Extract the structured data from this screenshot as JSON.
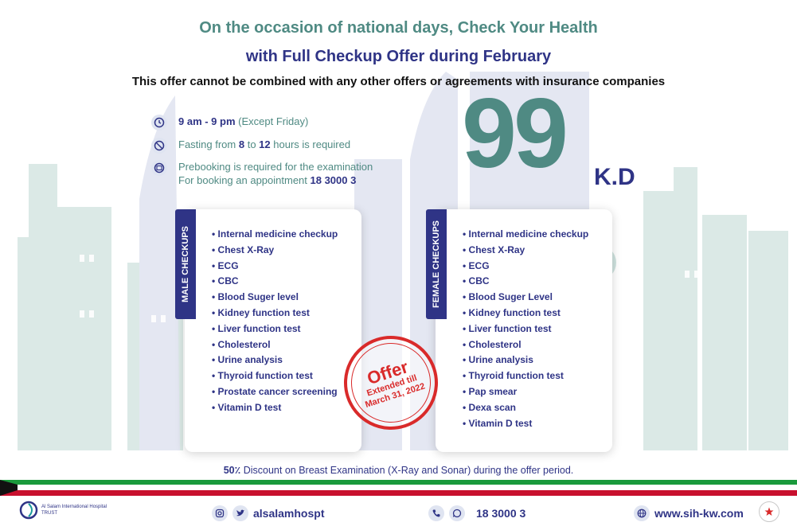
{
  "header": {
    "line1": "On the occasion of national days, Check Your Health",
    "line2": "with Full Checkup Offer during February",
    "line3": "This offer cannot be combined with any other offers or agreements with insurance companies"
  },
  "info": {
    "hours_time": "9 am - 9 pm",
    "hours_note": " (Except Friday)",
    "fasting_pre": "Fasting from ",
    "fasting_from": "8",
    "fasting_mid": " to ",
    "fasting_to": "12",
    "fasting_post": " hours is required",
    "prebook_line1": "Prebooking is required for the examination",
    "prebook_line2_pre": "For booking an appointment ",
    "prebook_phone": "18 3000 3"
  },
  "price": {
    "amount": "99",
    "currency": "K.D"
  },
  "male": {
    "tab_label": "MALE CHECKUPS",
    "items": [
      "Internal medicine checkup",
      "Chest X-Ray",
      "ECG",
      "CBC",
      "Blood Suger level",
      "Kidney function test",
      "Liver function test",
      "Cholesterol",
      "Urine analysis",
      "Thyroid function test",
      "Prostate cancer screening",
      "Vitamin D test"
    ]
  },
  "female": {
    "tab_label": "FEMALE CHECKUPS",
    "items": [
      "Internal medicine checkup",
      "Chest X-Ray",
      "ECG",
      "CBC",
      "Blood Suger Level",
      "Kidney function test",
      "Liver function test",
      "Cholesterol",
      "Urine analysis",
      "Thyroid function test",
      "Pap smear",
      "Dexa scan",
      "Vitamin D test"
    ]
  },
  "stamp": {
    "offer": "Offer",
    "line1": "Extended till",
    "line2": "March 31, 2022"
  },
  "discount": {
    "percent": "50٪",
    "text": " Discount on Breast Examination (X-Ray and Sonar) during the offer period."
  },
  "footer": {
    "social_handle": "alsalamhospt",
    "phone": "18 3000 3",
    "website": "www.sih-kw.com",
    "logo_name": "Al Salam International Hospital",
    "logo_tag": "TRUST"
  },
  "colors": {
    "teal": "#4f8a83",
    "navy": "#2f3486",
    "red": "#d92a2a",
    "flag_green": "#1a9a3c",
    "flag_red": "#c8102e"
  },
  "icons": [
    "clock-icon",
    "no-food-icon",
    "calendar-icon",
    "instagram-icon",
    "twitter-icon",
    "phone-icon",
    "whatsapp-icon",
    "globe-icon"
  ]
}
